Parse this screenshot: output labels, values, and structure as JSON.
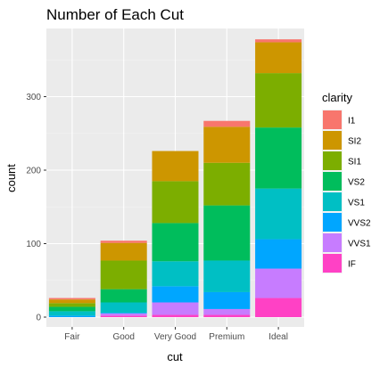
{
  "chart_data": {
    "type": "bar",
    "stacked": true,
    "title": "Number of Each Cut",
    "xlabel": "cut",
    "ylabel": "count",
    "categories": [
      "Fair",
      "Good",
      "Very Good",
      "Premium",
      "Ideal"
    ],
    "ylim": [
      0,
      390
    ],
    "yticks": [
      0,
      100,
      200,
      300
    ],
    "grid": true,
    "legend": {
      "title": "clarity",
      "placement": "right"
    },
    "series": [
      {
        "name": "IF",
        "color": "#FF41C5",
        "values": [
          0,
          2,
          3,
          3,
          26
        ]
      },
      {
        "name": "VVS1",
        "color": "#C77CFF",
        "values": [
          0,
          3,
          17,
          8,
          40
        ]
      },
      {
        "name": "VVS2",
        "color": "#00A6FF",
        "values": [
          2,
          1,
          22,
          23,
          40
        ]
      },
      {
        "name": "VS1",
        "color": "#00BFC4",
        "values": [
          6,
          14,
          34,
          43,
          69
        ]
      },
      {
        "name": "VS2",
        "color": "#00BD5C",
        "values": [
          6,
          18,
          52,
          75,
          83
        ]
      },
      {
        "name": "SI1",
        "color": "#7CAE00",
        "values": [
          5,
          39,
          57,
          58,
          74
        ]
      },
      {
        "name": "SI2",
        "color": "#CD9600",
        "values": [
          5,
          24,
          41,
          49,
          42
        ]
      },
      {
        "name": "I1",
        "color": "#F8766D",
        "values": [
          2,
          3,
          0,
          8,
          4
        ]
      }
    ],
    "legend_order": [
      "I1",
      "SI2",
      "SI1",
      "VS2",
      "VS1",
      "VVS2",
      "VVS1",
      "IF"
    ]
  }
}
